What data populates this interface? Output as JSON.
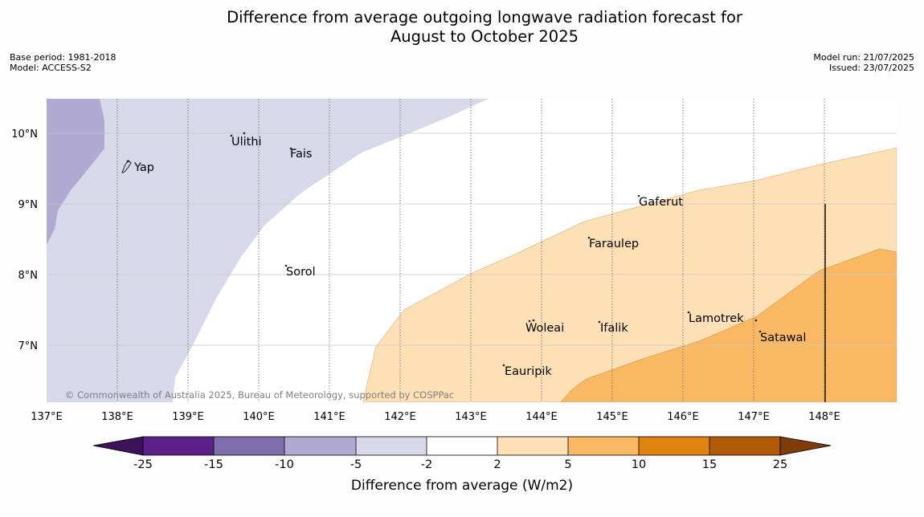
{
  "title": {
    "line1": "Difference from average outgoing longwave radiation forecast for",
    "line2": "August to October 2025"
  },
  "meta": {
    "base_period": "Base period: 1981-2018",
    "model": "Model: ACCESS-S2",
    "model_run": "Model run: 21/07/2025",
    "issued": "Issued: 23/07/2025"
  },
  "map": {
    "lon_labels": [
      "137°E",
      "138°E",
      "139°E",
      "140°E",
      "141°E",
      "142°E",
      "143°E",
      "144°E",
      "145°E",
      "146°E",
      "147°E",
      "148°E"
    ],
    "lat_labels": [
      "10°N",
      "9°N",
      "8°N",
      "7°N"
    ],
    "places": [
      "Yap",
      "Ulithi",
      "Fais",
      "Sorol",
      "Gaferut",
      "Faraulep",
      "Woleai",
      "Ifalik",
      "Lamotrek",
      "Satawal",
      "Eauripik"
    ],
    "copyright": "© Commonwealth of Australia 2025, Bureau of Meteorology, supported by COSPPac"
  },
  "colorbar": {
    "ticks": [
      "-25",
      "-15",
      "-10",
      "-5",
      "-2",
      "2",
      "5",
      "10",
      "15",
      "25"
    ],
    "label": "Difference from average (W/m2)",
    "colors": [
      "#3d1258",
      "#5c2189",
      "#7f6eab",
      "#b0a9d2",
      "#d7d8ea",
      "#ffffff",
      "#fde0b6",
      "#fbb863",
      "#e1830f",
      "#b15a07",
      "#7f3b08"
    ]
  }
}
